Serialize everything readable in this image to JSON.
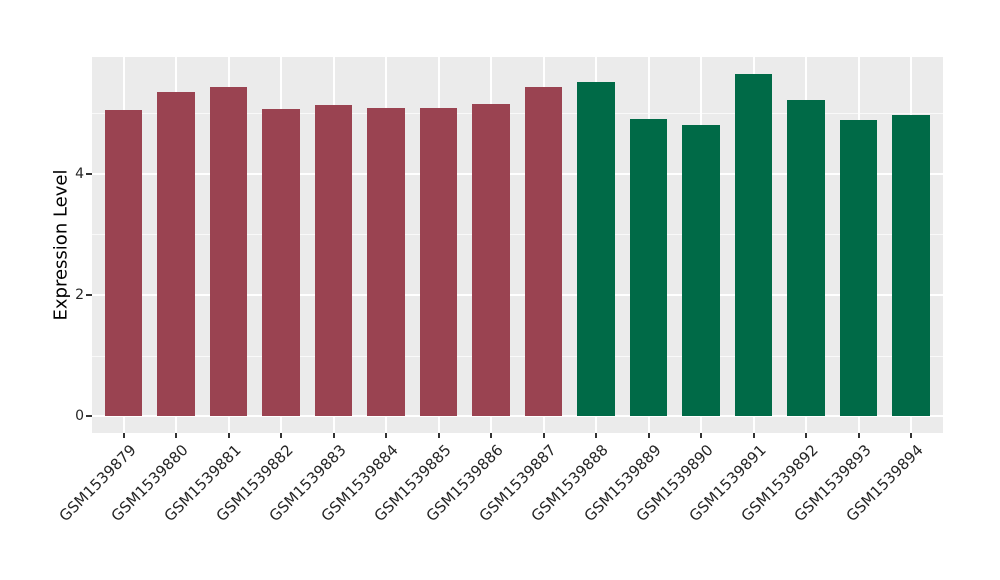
{
  "chart_data": {
    "type": "bar",
    "title": "",
    "xlabel": "",
    "ylabel": "Expression Level",
    "categories": [
      "GSM1539879",
      "GSM1539880",
      "GSM1539881",
      "GSM1539882",
      "GSM1539883",
      "GSM1539884",
      "GSM1539885",
      "GSM1539886",
      "GSM1539887",
      "GSM1539888",
      "GSM1539889",
      "GSM1539890",
      "GSM1539891",
      "GSM1539892",
      "GSM1539893",
      "GSM1539894"
    ],
    "values": [
      5.05,
      5.34,
      5.43,
      5.07,
      5.13,
      5.08,
      5.08,
      5.14,
      5.43,
      5.5,
      4.89,
      4.8,
      5.64,
      5.21,
      4.88,
      4.97
    ],
    "bar_colors": [
      "#9A4351",
      "#9A4351",
      "#9A4351",
      "#9A4351",
      "#9A4351",
      "#9A4351",
      "#9A4351",
      "#9A4351",
      "#9A4351",
      "#006A47",
      "#006A47",
      "#006A47",
      "#006A47",
      "#006A47",
      "#006A47",
      "#006A47"
    ],
    "group_colors": {
      "red_group": "#9A4351",
      "green_group": "#006A47"
    },
    "yticks": [
      0,
      2,
      4
    ],
    "yticks_minor": [
      1,
      3,
      5
    ],
    "ylim": [
      -0.28,
      5.93
    ],
    "x_tick_rotation": 45,
    "grid": true,
    "legend": "none",
    "panel_background": "#EBEBEB",
    "gridline_color": "#FFFFFF"
  }
}
